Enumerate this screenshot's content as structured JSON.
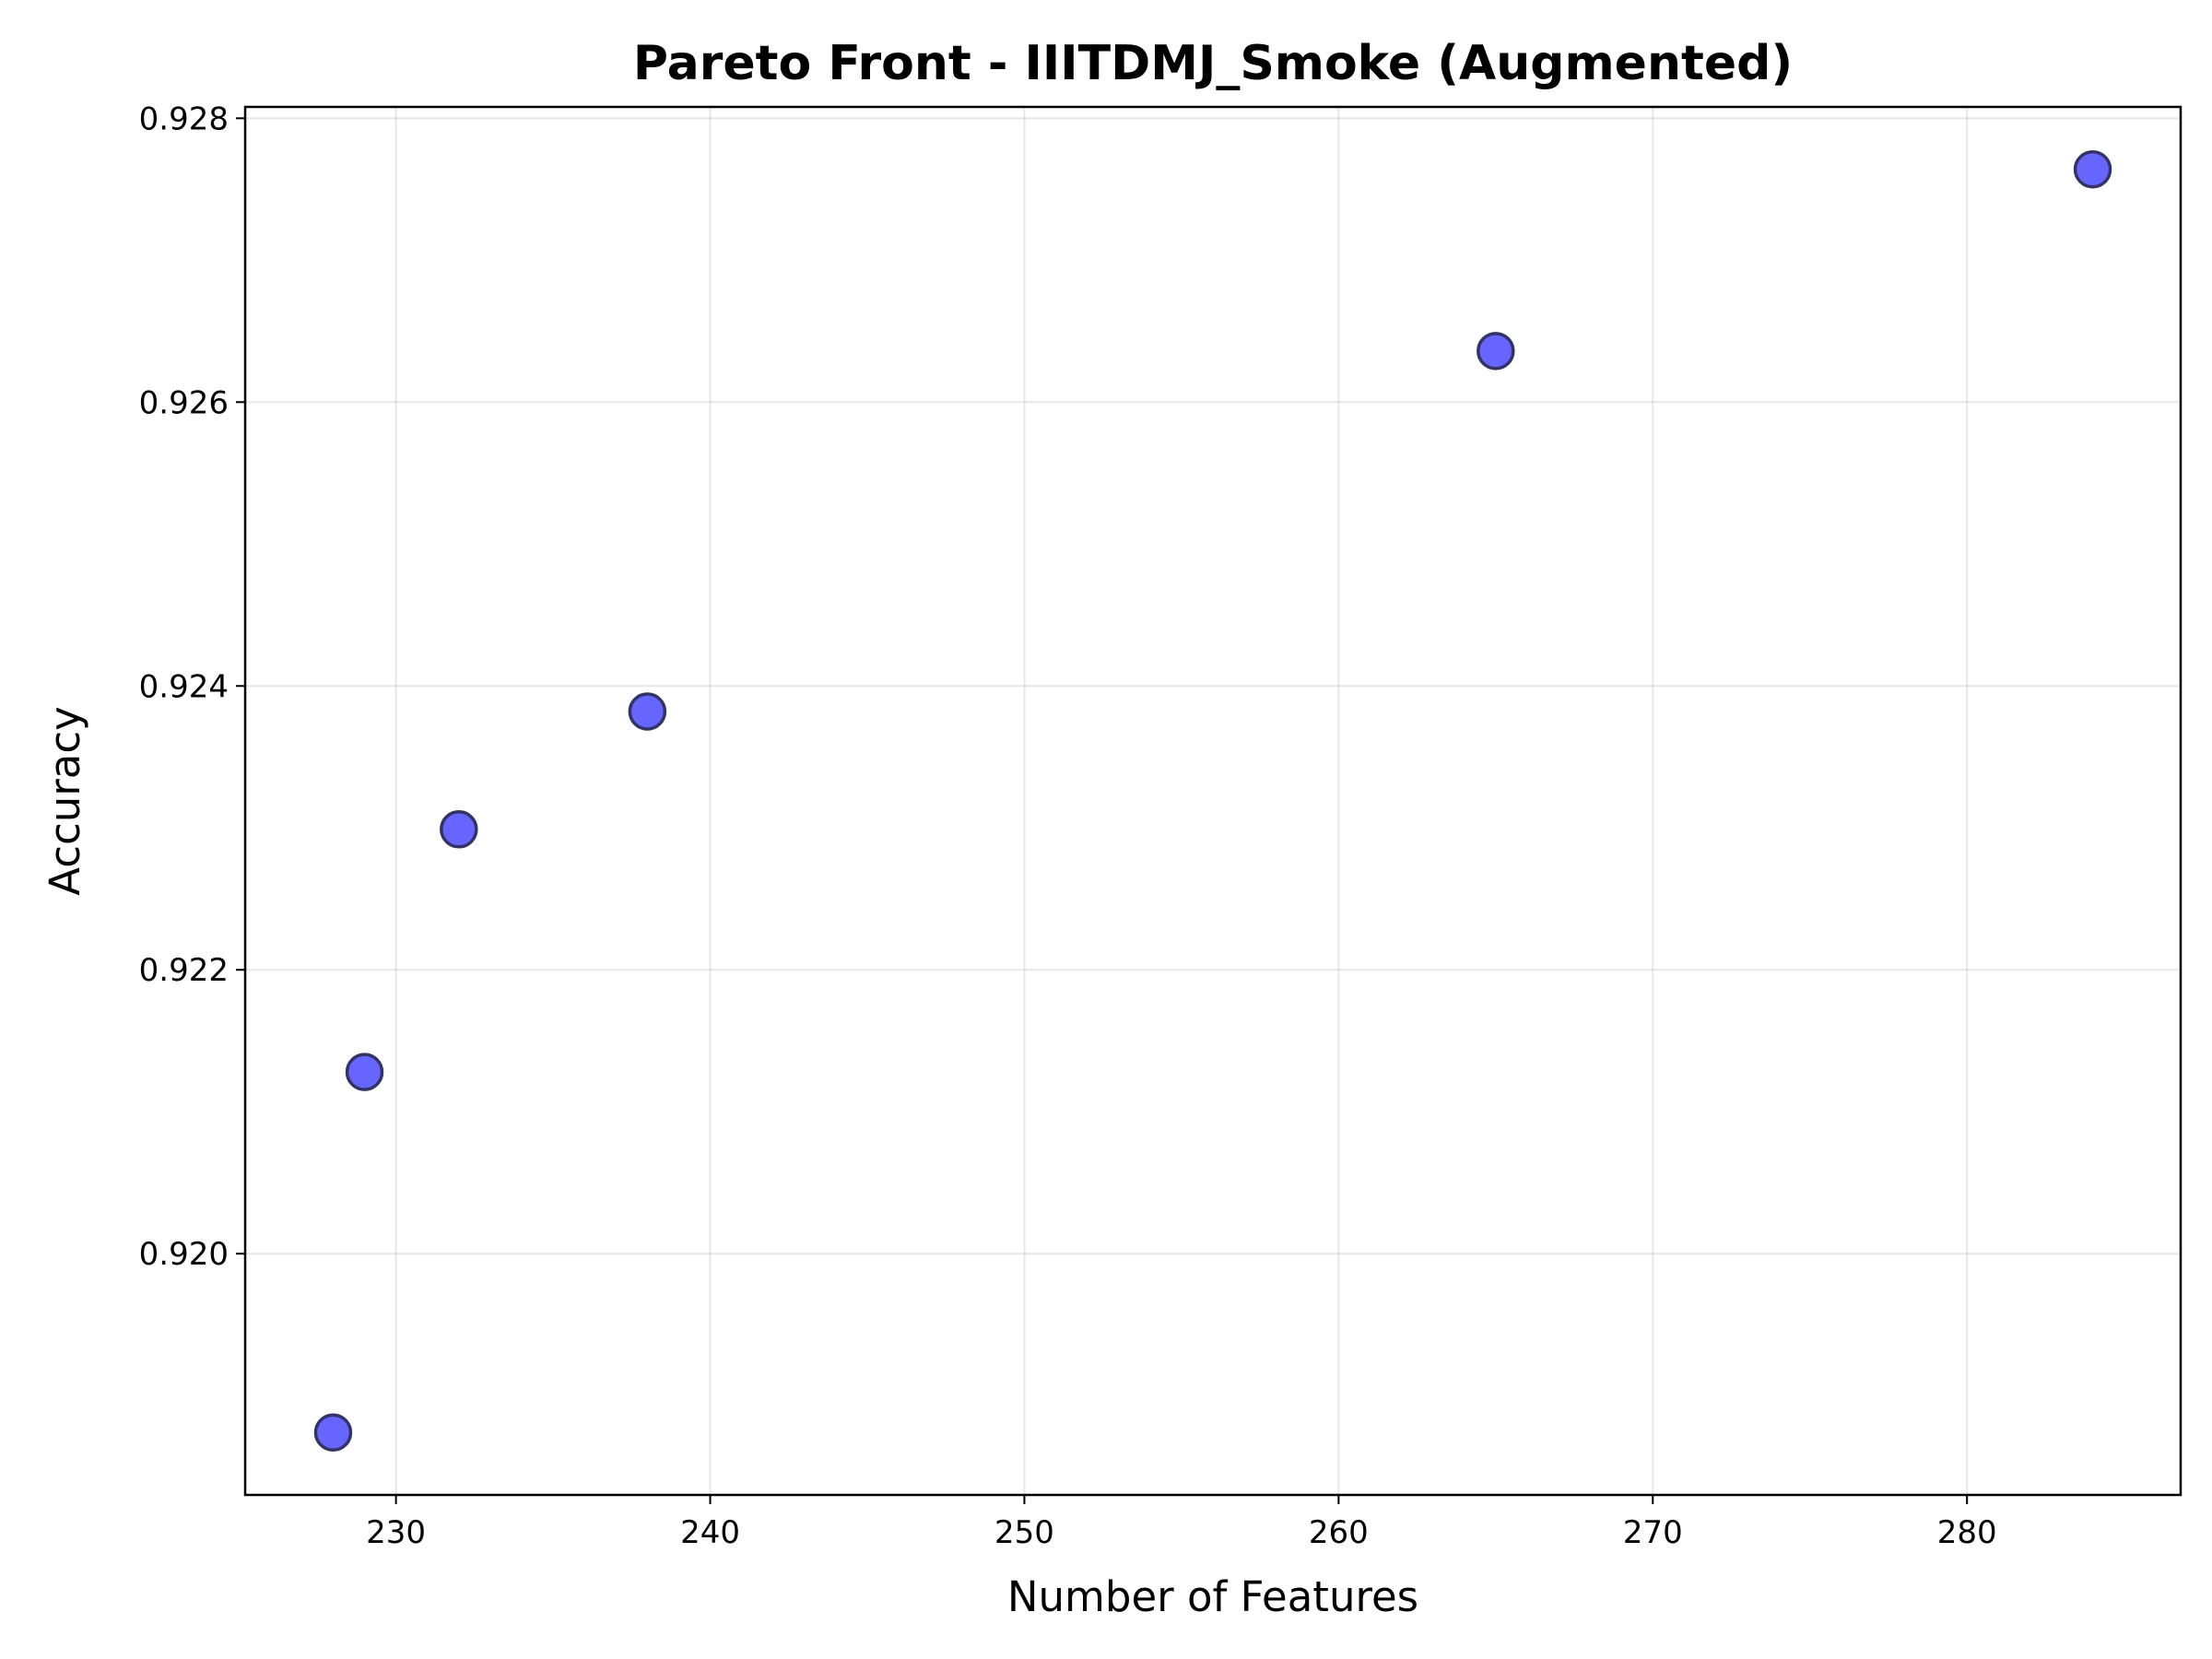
{
  "chart_data": {
    "type": "scatter",
    "title": "Pareto Front - IIITDMJ_Smoke (Augmented)",
    "xlabel": "Number of Features",
    "ylabel": "Accuracy",
    "xlim": [
      225.2,
      286.8
    ],
    "ylim": [
      0.9183,
      0.92808
    ],
    "xticks": [
      230,
      240,
      250,
      260,
      270,
      280
    ],
    "xtick_labels": [
      "230",
      "240",
      "250",
      "260",
      "270",
      "280"
    ],
    "yticks": [
      0.92,
      0.922,
      0.924,
      0.926,
      0.928
    ],
    "ytick_labels": [
      "0.920",
      "0.922",
      "0.924",
      "0.926",
      "0.928"
    ],
    "grid": true,
    "marker_color": "#6666ff",
    "marker_edge_color": "#333366",
    "points": [
      {
        "x": 228,
        "y": 0.91874
      },
      {
        "x": 229,
        "y": 0.92128
      },
      {
        "x": 232,
        "y": 0.92299
      },
      {
        "x": 238,
        "y": 0.92382
      },
      {
        "x": 265,
        "y": 0.92636
      },
      {
        "x": 284,
        "y": 0.92764
      }
    ]
  }
}
